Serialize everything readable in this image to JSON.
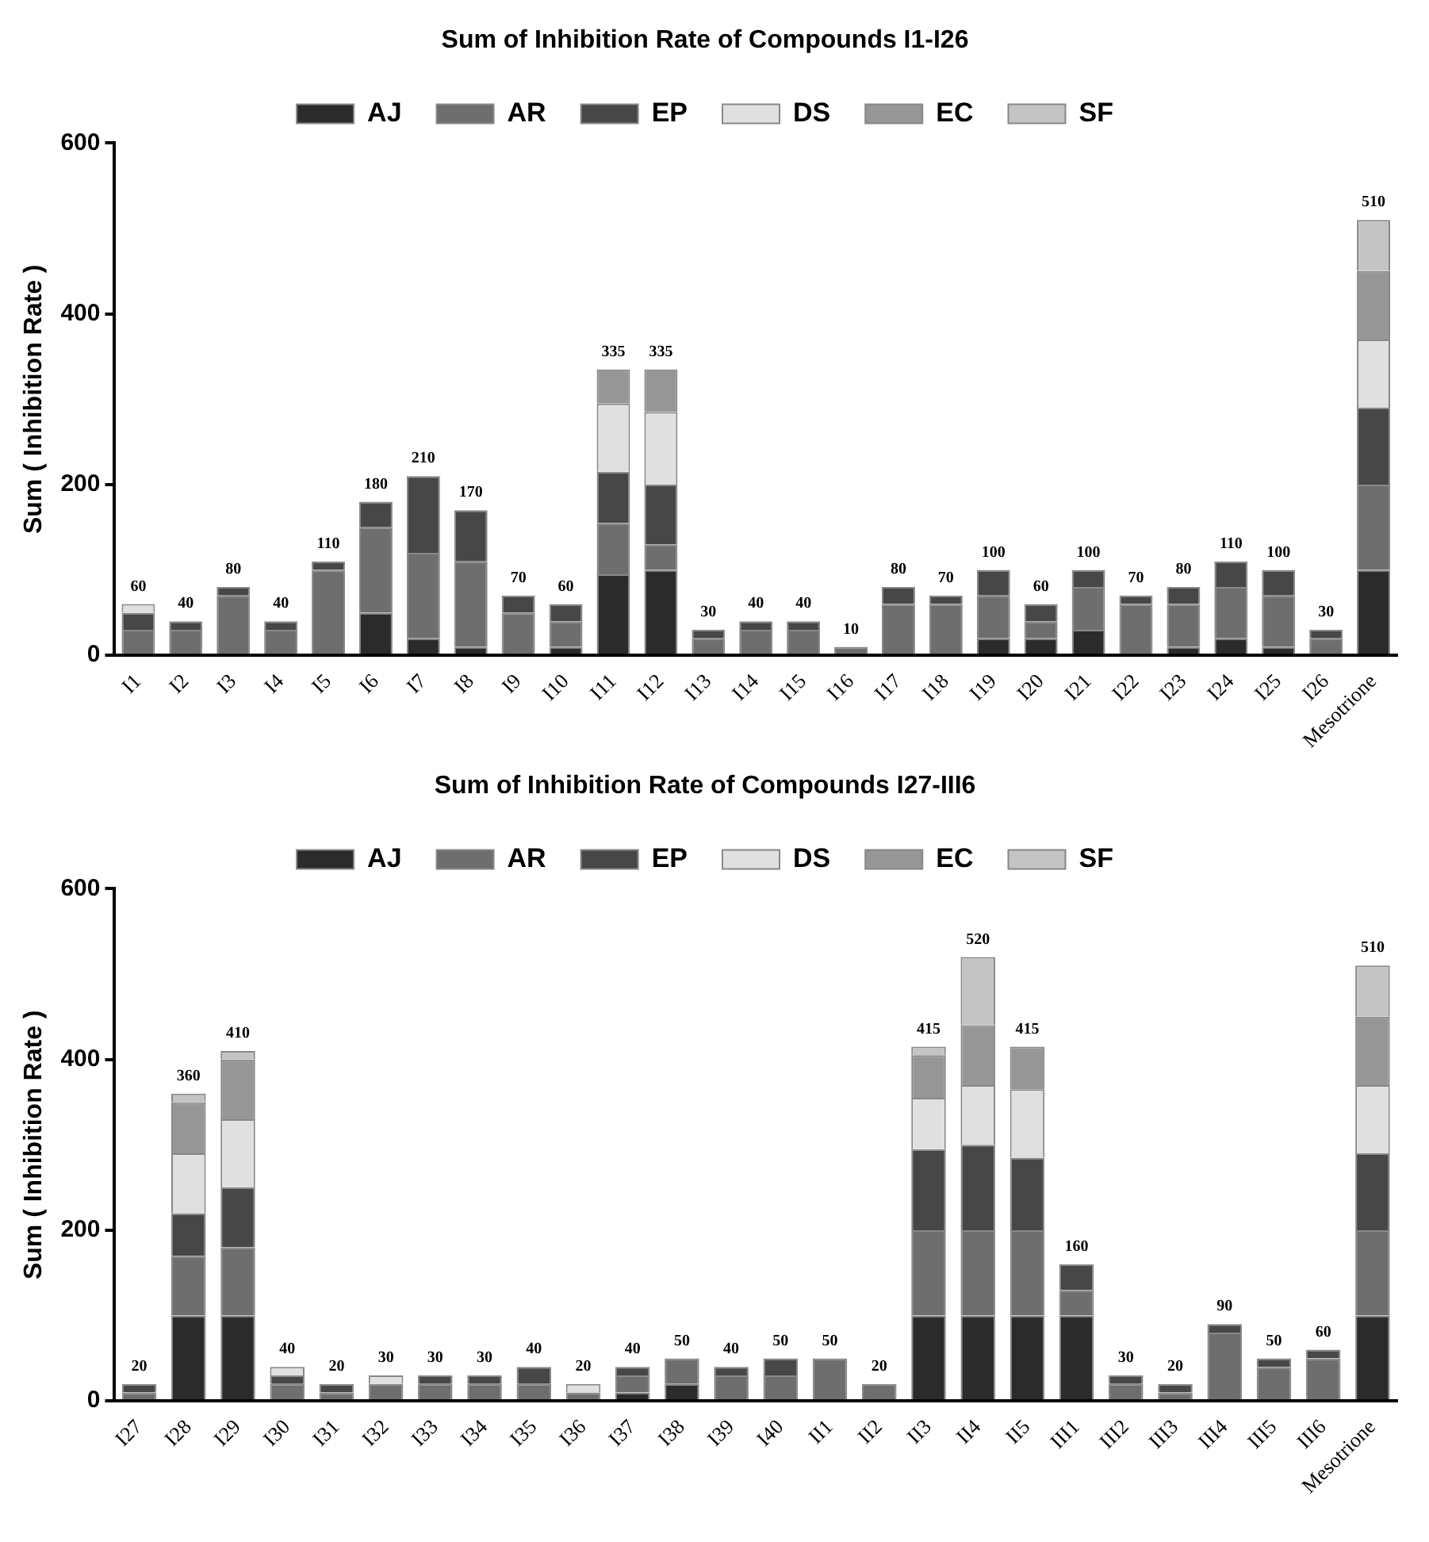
{
  "chart_data": [
    {
      "type": "bar",
      "title": "Sum of Inhibition Rate of Compounds I1-I26",
      "ylabel": "Sum ( Inhibition Rate )",
      "stacked": true,
      "legend": "top",
      "grid": false,
      "ylim": [
        0,
        600
      ],
      "yticks": [
        0,
        200,
        400,
        600
      ],
      "categories": [
        "I1",
        "I2",
        "I3",
        "I4",
        "I5",
        "I6",
        "I7",
        "I8",
        "I9",
        "I10",
        "I11",
        "I12",
        "I13",
        "I14",
        "I15",
        "I16",
        "I17",
        "I18",
        "I19",
        "I20",
        "I21",
        "I22",
        "I23",
        "I24",
        "I25",
        "I26",
        "Mesotrione"
      ],
      "series": [
        {
          "name": "AJ",
          "color": "#2b2b2b",
          "values": [
            0,
            0,
            0,
            0,
            0,
            50,
            20,
            10,
            0,
            10,
            95,
            100,
            0,
            0,
            0,
            0,
            0,
            0,
            20,
            20,
            30,
            0,
            10,
            20,
            10,
            0,
            100
          ]
        },
        {
          "name": "AR",
          "color": "#6e6e6e",
          "values": [
            30,
            30,
            70,
            30,
            100,
            100,
            100,
            100,
            50,
            30,
            60,
            30,
            20,
            30,
            30,
            10,
            60,
            60,
            50,
            20,
            50,
            60,
            50,
            60,
            60,
            20,
            100
          ]
        },
        {
          "name": "EP",
          "color": "#474747",
          "values": [
            20,
            10,
            10,
            10,
            10,
            30,
            90,
            60,
            20,
            20,
            60,
            70,
            10,
            10,
            10,
            0,
            20,
            10,
            30,
            20,
            20,
            10,
            20,
            30,
            30,
            10,
            90
          ]
        },
        {
          "name": "DS",
          "color": "#e0e0e0",
          "values": [
            10,
            0,
            0,
            0,
            0,
            0,
            0,
            0,
            0,
            0,
            80,
            85,
            0,
            0,
            0,
            0,
            0,
            0,
            0,
            0,
            0,
            0,
            0,
            0,
            0,
            0,
            80
          ]
        },
        {
          "name": "EC",
          "color": "#969696",
          "values": [
            0,
            0,
            0,
            0,
            0,
            0,
            0,
            0,
            0,
            0,
            40,
            50,
            0,
            0,
            0,
            0,
            0,
            0,
            0,
            0,
            0,
            0,
            0,
            0,
            0,
            0,
            80
          ]
        },
        {
          "name": "SF",
          "color": "#c4c4c4",
          "values": [
            0,
            0,
            0,
            0,
            0,
            0,
            0,
            0,
            0,
            0,
            0,
            0,
            0,
            0,
            0,
            0,
            0,
            0,
            0,
            0,
            0,
            0,
            0,
            0,
            0,
            0,
            60
          ]
        }
      ],
      "totals": [
        "60",
        "40",
        "80",
        "40",
        "110",
        "180",
        "210",
        "170",
        "70",
        "60",
        "335",
        "335",
        "30",
        "40",
        "40",
        "10",
        "80",
        "70",
        "100",
        "60",
        "100",
        "70",
        "80",
        "110",
        "100",
        "30",
        "510"
      ]
    },
    {
      "type": "bar",
      "title": "Sum of Inhibition Rate of Compounds I27-III6",
      "ylabel": "Sum ( Inhibition Rate )",
      "stacked": true,
      "legend": "top",
      "grid": false,
      "ylim": [
        0,
        600
      ],
      "yticks": [
        0,
        200,
        400,
        600
      ],
      "categories": [
        "I27",
        "I28",
        "I29",
        "I30",
        "I31",
        "I32",
        "I33",
        "I34",
        "I35",
        "I36",
        "I37",
        "I38",
        "I39",
        "I40",
        "II1",
        "II2",
        "II3",
        "II4",
        "II5",
        "III1",
        "III2",
        "III3",
        "III4",
        "III5",
        "III6",
        "Mesotrione"
      ],
      "series": [
        {
          "name": "AJ",
          "color": "#2b2b2b",
          "values": [
            0,
            100,
            100,
            0,
            0,
            0,
            0,
            0,
            0,
            0,
            10,
            20,
            0,
            0,
            0,
            0,
            100,
            100,
            100,
            100,
            0,
            0,
            0,
            0,
            0,
            100
          ]
        },
        {
          "name": "AR",
          "color": "#6e6e6e",
          "values": [
            10,
            70,
            80,
            20,
            10,
            20,
            20,
            20,
            20,
            10,
            20,
            30,
            30,
            30,
            50,
            20,
            100,
            100,
            100,
            30,
            20,
            10,
            80,
            40,
            50,
            100
          ]
        },
        {
          "name": "EP",
          "color": "#474747",
          "values": [
            10,
            50,
            70,
            10,
            10,
            0,
            10,
            10,
            20,
            0,
            10,
            0,
            10,
            20,
            0,
            0,
            95,
            100,
            85,
            30,
            10,
            10,
            10,
            10,
            10,
            90
          ]
        },
        {
          "name": "DS",
          "color": "#e0e0e0",
          "values": [
            0,
            70,
            80,
            10,
            0,
            10,
            0,
            0,
            0,
            10,
            0,
            0,
            0,
            0,
            0,
            0,
            60,
            70,
            80,
            0,
            0,
            0,
            0,
            0,
            0,
            80
          ]
        },
        {
          "name": "EC",
          "color": "#969696",
          "values": [
            0,
            60,
            70,
            0,
            0,
            0,
            0,
            0,
            0,
            0,
            0,
            0,
            0,
            0,
            0,
            0,
            50,
            70,
            50,
            0,
            0,
            0,
            0,
            0,
            0,
            80
          ]
        },
        {
          "name": "SF",
          "color": "#c4c4c4",
          "values": [
            0,
            10,
            10,
            0,
            0,
            0,
            0,
            0,
            0,
            0,
            0,
            0,
            0,
            0,
            0,
            0,
            10,
            80,
            0,
            0,
            0,
            0,
            0,
            0,
            0,
            60
          ]
        }
      ],
      "totals": [
        "20",
        "360",
        "410",
        "40",
        "20",
        "30",
        "30",
        "30",
        "40",
        "20",
        "40",
        "50",
        "40",
        "50",
        "50",
        "20",
        "415",
        "520",
        "415",
        "160",
        "30",
        "20",
        "90",
        "50",
        "60",
        "510"
      ]
    }
  ]
}
